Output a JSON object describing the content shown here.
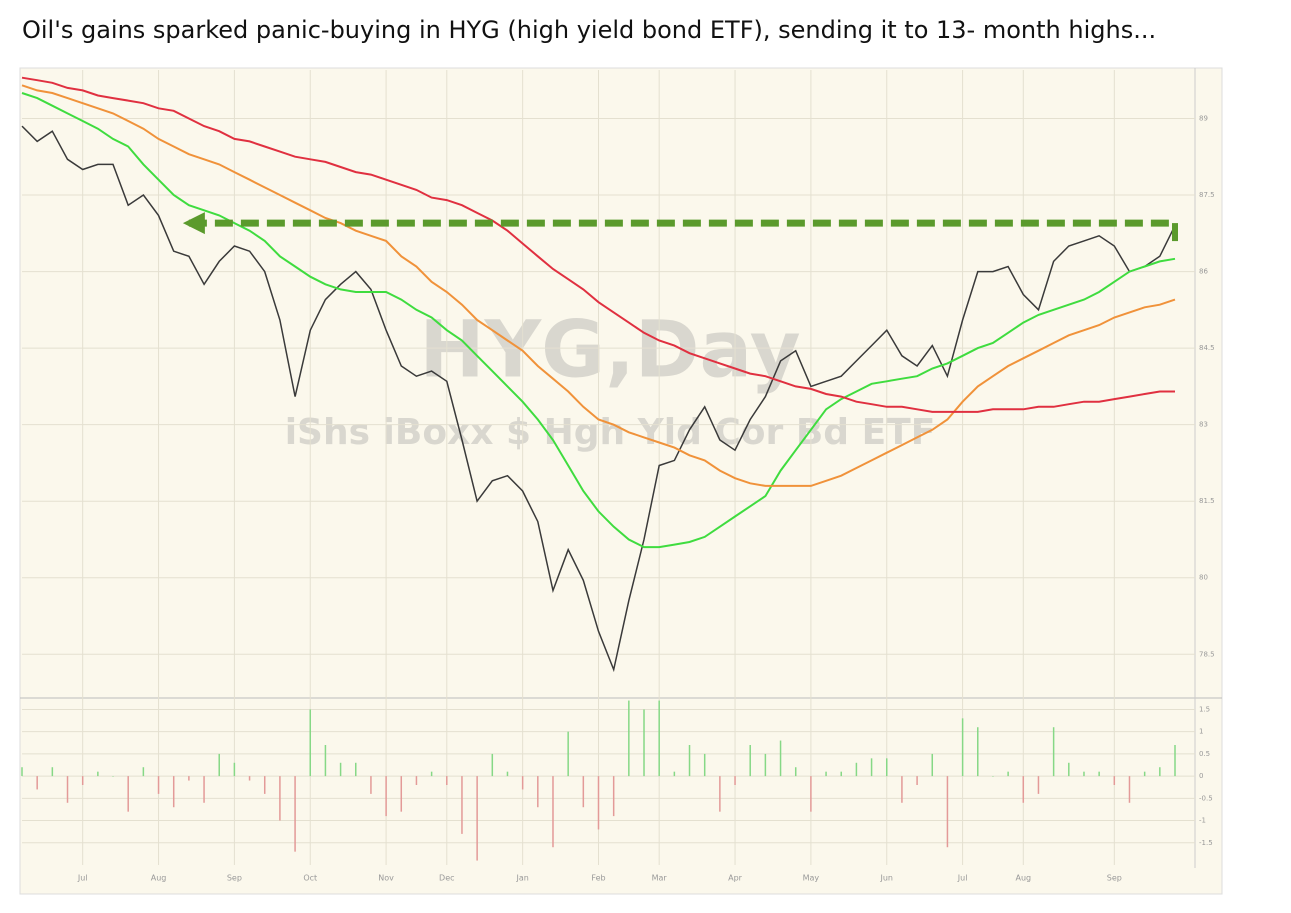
{
  "chart_data": [
    {
      "type": "line",
      "title": "Oil's gains sparked panic-buying in HYG (high yield bond ETF), sending it to 13- month highs...",
      "watermark": "HYG,Day",
      "subtitle": "iShs iBoxx $ Hgh Yld Cor Bd ETF",
      "categories": [
        null,
        null,
        null,
        null,
        "Jul",
        null,
        null,
        null,
        null,
        "Aug",
        null,
        null,
        null,
        null,
        "Sep",
        null,
        null,
        null,
        null,
        "Oct",
        null,
        null,
        null,
        null,
        "Nov",
        null,
        null,
        null,
        "Dec",
        null,
        null,
        null,
        null,
        "Jan",
        null,
        null,
        null,
        null,
        "Feb",
        null,
        null,
        null,
        "Mar",
        null,
        null,
        null,
        null,
        "Apr",
        null,
        null,
        null,
        null,
        "May",
        null,
        null,
        null,
        null,
        "Jun",
        null,
        null,
        null,
        null,
        "Jul",
        null,
        null,
        null,
        "Aug",
        null,
        null,
        null,
        null,
        null,
        "Sep",
        null,
        null,
        null,
        null
      ],
      "series": [
        {
          "color": "#3a3a3a",
          "values": [
            88.85,
            88.55,
            88.75,
            88.2,
            88.0,
            88.1,
            88.1,
            87.3,
            87.5,
            87.1,
            86.4,
            86.3,
            85.75,
            86.2,
            86.5,
            86.4,
            86.0,
            85.05,
            83.55,
            84.85,
            85.45,
            85.75,
            86.0,
            85.65,
            84.85,
            84.15,
            83.95,
            84.05,
            83.85,
            82.7,
            81.5,
            81.9,
            82.0,
            81.7,
            81.1,
            79.75,
            80.55,
            79.95,
            78.95,
            78.2,
            79.55,
            80.75,
            82.2,
            82.3,
            82.9,
            83.35,
            82.7,
            82.5,
            83.1,
            83.55,
            84.25,
            84.45,
            83.75,
            83.85,
            83.95,
            84.25,
            84.55,
            84.85,
            84.35,
            84.15,
            84.55,
            83.95,
            85.05,
            86.0,
            86.0,
            86.1,
            85.55,
            85.25,
            86.2,
            86.5,
            86.6,
            86.7,
            86.5,
            86.0,
            86.1,
            86.3,
            86.9
          ]
        },
        {
          "color": "#3fdc3f",
          "values": [
            89.5,
            89.4,
            89.25,
            89.1,
            88.95,
            88.8,
            88.6,
            88.45,
            88.1,
            87.8,
            87.5,
            87.3,
            87.2,
            87.1,
            86.95,
            86.8,
            86.6,
            86.3,
            86.1,
            85.9,
            85.75,
            85.65,
            85.6,
            85.6,
            85.6,
            85.45,
            85.25,
            85.1,
            84.85,
            84.65,
            84.35,
            84.05,
            83.75,
            83.45,
            83.1,
            82.7,
            82.2,
            81.7,
            81.3,
            81.0,
            80.75,
            80.6,
            80.6,
            80.65,
            80.7,
            80.8,
            81.0,
            81.2,
            81.4,
            81.6,
            82.1,
            82.5,
            82.9,
            83.3,
            83.5,
            83.65,
            83.8,
            83.85,
            83.9,
            83.95,
            84.1,
            84.2,
            84.35,
            84.5,
            84.6,
            84.8,
            85.0,
            85.15,
            85.25,
            85.35,
            85.45,
            85.6,
            85.8,
            86.0,
            86.1,
            86.2,
            86.25
          ]
        },
        {
          "color": "#f0923a",
          "values": [
            89.65,
            89.55,
            89.5,
            89.4,
            89.3,
            89.2,
            89.1,
            88.95,
            88.8,
            88.6,
            88.45,
            88.3,
            88.2,
            88.1,
            87.95,
            87.8,
            87.65,
            87.5,
            87.35,
            87.2,
            87.05,
            86.95,
            86.8,
            86.7,
            86.6,
            86.3,
            86.1,
            85.8,
            85.6,
            85.35,
            85.05,
            84.85,
            84.65,
            84.45,
            84.15,
            83.9,
            83.65,
            83.35,
            83.1,
            83.0,
            82.85,
            82.75,
            82.65,
            82.55,
            82.4,
            82.3,
            82.1,
            81.95,
            81.85,
            81.8,
            81.8,
            81.8,
            81.8,
            81.9,
            82.0,
            82.15,
            82.3,
            82.45,
            82.6,
            82.75,
            82.9,
            83.1,
            83.45,
            83.75,
            83.95,
            84.15,
            84.3,
            84.45,
            84.6,
            84.75,
            84.85,
            84.95,
            85.1,
            85.2,
            85.3,
            85.35,
            85.45
          ]
        },
        {
          "color": "#e03040",
          "values": [
            89.8,
            89.75,
            89.7,
            89.6,
            89.55,
            89.45,
            89.4,
            89.35,
            89.3,
            89.2,
            89.15,
            89.0,
            88.85,
            88.75,
            88.6,
            88.55,
            88.45,
            88.35,
            88.25,
            88.2,
            88.15,
            88.05,
            87.95,
            87.9,
            87.8,
            87.7,
            87.6,
            87.45,
            87.4,
            87.3,
            87.15,
            87.0,
            86.8,
            86.55,
            86.3,
            86.05,
            85.85,
            85.65,
            85.4,
            85.2,
            85.0,
            84.8,
            84.65,
            84.55,
            84.4,
            84.3,
            84.2,
            84.1,
            84.0,
            83.95,
            83.85,
            83.75,
            83.7,
            83.6,
            83.55,
            83.45,
            83.4,
            83.35,
            83.35,
            83.3,
            83.25,
            83.25,
            83.25,
            83.25,
            83.3,
            83.3,
            83.3,
            83.35,
            83.35,
            83.4,
            83.45,
            83.45,
            83.5,
            83.55,
            83.6,
            83.65,
            83.65
          ]
        }
      ],
      "ylim": [
        77.8,
        89.95
      ],
      "yticks": [
        78.5,
        80,
        81.5,
        83,
        84.5,
        86,
        87.5,
        89
      ],
      "grid": true,
      "reference_line": {
        "value": 86.95,
        "color": "#5b9a2c"
      }
    },
    {
      "type": "bar",
      "values": [
        0.2,
        -0.3,
        0.2,
        -0.6,
        -0.2,
        0.1,
        0.0,
        -0.8,
        0.2,
        -0.4,
        -0.7,
        -0.1,
        -0.6,
        0.5,
        0.3,
        -0.1,
        -0.4,
        -1.0,
        -1.7,
        1.5,
        0.7,
        0.3,
        0.3,
        -0.4,
        -0.9,
        -0.8,
        -0.2,
        0.1,
        -0.2,
        -1.3,
        -1.9,
        0.5,
        0.1,
        -0.3,
        -0.7,
        -1.6,
        1.0,
        -0.7,
        -1.2,
        -0.9,
        1.7,
        1.5,
        1.7,
        0.1,
        0.7,
        0.5,
        -0.8,
        -0.2,
        0.7,
        0.5,
        0.8,
        0.2,
        -0.8,
        0.1,
        0.1,
        0.3,
        0.4,
        0.4,
        -0.6,
        -0.2,
        0.5,
        -1.6,
        1.3,
        1.1,
        0.0,
        0.1,
        -0.6,
        -0.4,
        1.1,
        0.3,
        0.1,
        0.1,
        -0.2,
        -0.6,
        0.1,
        0.2,
        0.7
      ],
      "up_color": "#86d886",
      "down_color": "#e39a98",
      "ylim": [
        -2,
        1.6
      ],
      "yticks": [
        -1.5,
        -1,
        -0.5,
        0,
        0.5,
        1,
        1.5
      ],
      "grid": true
    }
  ]
}
